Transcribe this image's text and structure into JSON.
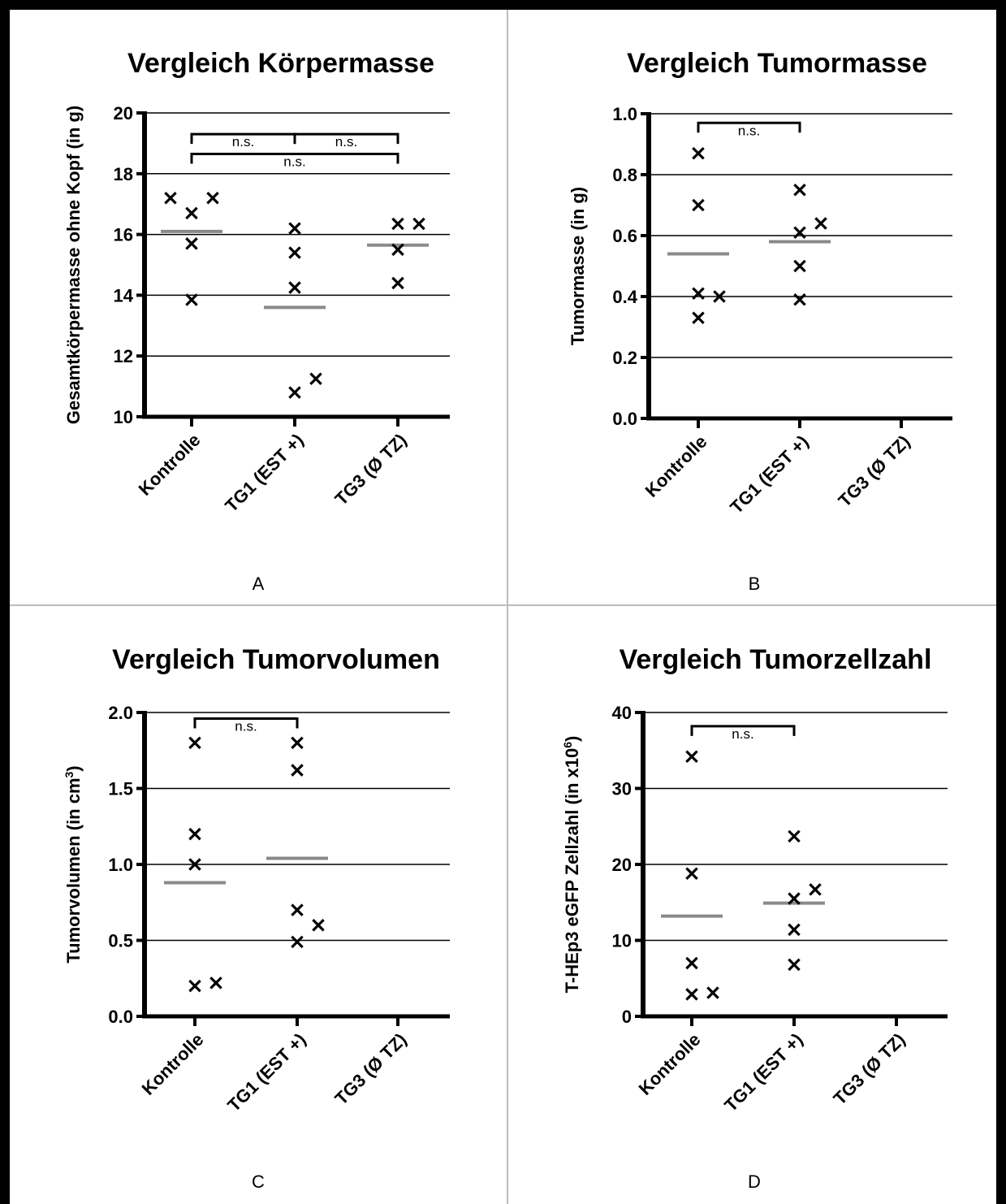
{
  "chart_data": [
    {
      "type": "scatter",
      "panel_letter": "A",
      "title": "Vergleich Körpermasse",
      "ylabel": "Gesamtkörpermasse ohne Kopf (in g)",
      "ylabel_super": "",
      "ylabel_tail": "",
      "categories": [
        "Kontrolle",
        "TG1 (EST +)",
        "TG3 (Ø TZ)"
      ],
      "ylim": [
        10,
        20
      ],
      "yticks": [
        10,
        12,
        14,
        16,
        18,
        20
      ],
      "ytick_labels": [
        "10",
        "12",
        "14",
        "16",
        "18",
        "20"
      ],
      "grid": true,
      "points": [
        [
          {
            "y": 17.2,
            "jitter": -1
          },
          {
            "y": 16.7,
            "jitter": 0
          },
          {
            "y": 17.2,
            "jitter": 1
          },
          {
            "y": 15.7,
            "jitter": 0
          },
          {
            "y": 13.85,
            "jitter": 0
          }
        ],
        [
          {
            "y": 16.2,
            "jitter": 0
          },
          {
            "y": 15.4,
            "jitter": 0
          },
          {
            "y": 14.25,
            "jitter": 0
          },
          {
            "y": 10.8,
            "jitter": 0
          },
          {
            "y": 11.25,
            "jitter": 1
          }
        ],
        [
          {
            "y": 16.35,
            "jitter": 0
          },
          {
            "y": 16.35,
            "jitter": 1
          },
          {
            "y": 15.5,
            "jitter": 0
          },
          {
            "y": 14.4,
            "jitter": 0
          }
        ]
      ],
      "means": [
        16.1,
        13.6,
        15.65
      ],
      "significance": [
        {
          "from": 0,
          "to": 1,
          "label": "n.s.",
          "level": 19.3
        },
        {
          "from": 1,
          "to": 2,
          "label": "n.s.",
          "level": 19.3
        },
        {
          "from": 0,
          "to": 2,
          "label": "n.s.",
          "level": 18.65
        }
      ]
    },
    {
      "type": "scatter",
      "panel_letter": "B",
      "title": "Vergleich Tumormasse",
      "ylabel": "Tumormasse (in g)",
      "ylabel_super": "",
      "ylabel_tail": "",
      "categories": [
        "Kontrolle",
        "TG1 (EST +)",
        "TG3 (Ø TZ)"
      ],
      "ylim": [
        0.0,
        1.0
      ],
      "yticks": [
        0.0,
        0.2,
        0.4,
        0.6,
        0.8,
        1.0
      ],
      "ytick_labels": [
        "0.0",
        "0.2",
        "0.4",
        "0.6",
        "0.8",
        "1.0"
      ],
      "grid": true,
      "points": [
        [
          {
            "y": 0.87,
            "jitter": 0
          },
          {
            "y": 0.7,
            "jitter": 0
          },
          {
            "y": 0.41,
            "jitter": 0
          },
          {
            "y": 0.4,
            "jitter": 1
          },
          {
            "y": 0.33,
            "jitter": 0
          }
        ],
        [
          {
            "y": 0.75,
            "jitter": 0
          },
          {
            "y": 0.64,
            "jitter": 1
          },
          {
            "y": 0.61,
            "jitter": 0
          },
          {
            "y": 0.5,
            "jitter": 0
          },
          {
            "y": 0.39,
            "jitter": 0
          }
        ],
        []
      ],
      "means": [
        0.54,
        0.58,
        null
      ],
      "significance": [
        {
          "from": 0,
          "to": 1,
          "label": "n.s.",
          "level": 0.97
        }
      ]
    },
    {
      "type": "scatter",
      "panel_letter": "C",
      "title": "Vergleich Tumorvolumen",
      "ylabel": "Tumorvolumen (in cm",
      "ylabel_super": "3",
      "ylabel_tail": ")",
      "categories": [
        "Kontrolle",
        "TG1 (EST +)",
        "TG3 (Ø TZ)"
      ],
      "ylim": [
        0.0,
        2.0
      ],
      "yticks": [
        0.0,
        0.5,
        1.0,
        1.5,
        2.0
      ],
      "ytick_labels": [
        "0.0",
        "0.5",
        "1.0",
        "1.5",
        "2.0"
      ],
      "grid": true,
      "points": [
        [
          {
            "y": 1.8,
            "jitter": 0
          },
          {
            "y": 1.2,
            "jitter": 0
          },
          {
            "y": 1.0,
            "jitter": 0
          },
          {
            "y": 0.2,
            "jitter": 0
          },
          {
            "y": 0.22,
            "jitter": 1
          }
        ],
        [
          {
            "y": 1.8,
            "jitter": 0
          },
          {
            "y": 1.62,
            "jitter": 0
          },
          {
            "y": 0.7,
            "jitter": 0
          },
          {
            "y": 0.6,
            "jitter": 1
          },
          {
            "y": 0.49,
            "jitter": 0
          }
        ],
        []
      ],
      "means": [
        0.88,
        1.04,
        null
      ],
      "significance": [
        {
          "from": 0,
          "to": 1,
          "label": "n.s.",
          "level": 1.96
        }
      ]
    },
    {
      "type": "scatter",
      "panel_letter": "D",
      "title": "Vergleich Tumorzellzahl",
      "ylabel": "T-HEp3 eGFP Zellzahl (in x10",
      "ylabel_super": "6",
      "ylabel_tail": ")",
      "categories": [
        "Kontrolle",
        "TG1 (EST +)",
        "TG3 (Ø TZ)"
      ],
      "ylim": [
        0,
        40
      ],
      "yticks": [
        0,
        10,
        20,
        30,
        40
      ],
      "ytick_labels": [
        "0",
        "10",
        "20",
        "30",
        "40"
      ],
      "grid": true,
      "points": [
        [
          {
            "y": 34.2,
            "jitter": 0
          },
          {
            "y": 18.8,
            "jitter": 0
          },
          {
            "y": 7.0,
            "jitter": 0
          },
          {
            "y": 2.9,
            "jitter": 0
          },
          {
            "y": 3.1,
            "jitter": 1
          }
        ],
        [
          {
            "y": 23.7,
            "jitter": 0
          },
          {
            "y": 16.7,
            "jitter": 1
          },
          {
            "y": 15.5,
            "jitter": 0
          },
          {
            "y": 11.4,
            "jitter": 0
          },
          {
            "y": 6.8,
            "jitter": 0
          }
        ],
        []
      ],
      "means": [
        13.2,
        14.9,
        null
      ],
      "significance": [
        {
          "from": 0,
          "to": 1,
          "label": "n.s.",
          "level": 38.2
        }
      ]
    }
  ],
  "colors": {
    "axis": "#000000",
    "marker": "#000000",
    "mean_line": "#8a8a8a",
    "panel_border": "#000000",
    "panel_divider": "#bdbdbd"
  }
}
